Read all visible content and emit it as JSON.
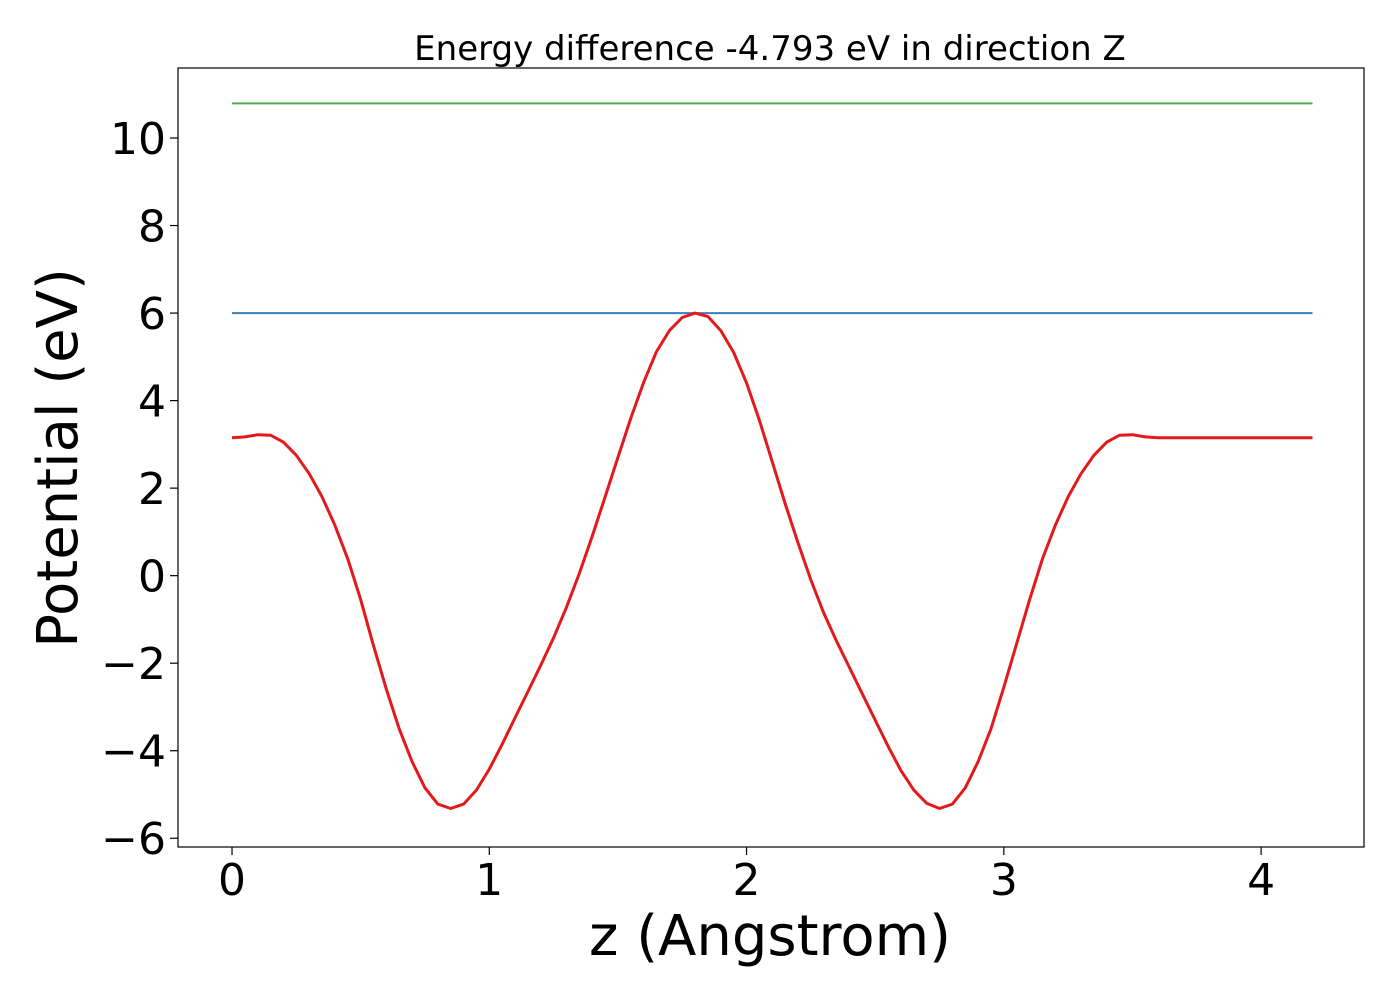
{
  "chart_data": {
    "type": "line",
    "title": "Energy difference -4.793 eV in direction Z",
    "xlabel": "z (Angstrom)",
    "ylabel": "Potential (eV)",
    "xlim": [
      -0.21,
      4.4
    ],
    "ylim": [
      -6.2,
      11.6
    ],
    "xticks": [
      0,
      1,
      2,
      3,
      4
    ],
    "yticks": [
      -6,
      -4,
      -2,
      0,
      2,
      4,
      6,
      8,
      10
    ],
    "xtick_labels": [
      "0",
      "1",
      "2",
      "3",
      "4"
    ],
    "ytick_labels": [
      "−6",
      "−4",
      "−2",
      "0",
      "2",
      "4",
      "6",
      "8",
      "10"
    ],
    "grid": false,
    "colors": {
      "potential": "#e31a1c",
      "upper": "#4daf4a",
      "middle": "#377eb8"
    },
    "series": [
      {
        "key": "upper",
        "x": [
          0,
          4.2
        ],
        "y": [
          10.79,
          10.79
        ]
      },
      {
        "key": "middle",
        "x": [
          0,
          4.2
        ],
        "y": [
          6.0,
          6.0
        ]
      },
      {
        "key": "potential",
        "x": [
          0.0,
          0.05,
          0.1,
          0.15,
          0.2,
          0.25,
          0.3,
          0.35,
          0.4,
          0.45,
          0.5,
          0.55,
          0.6,
          0.65,
          0.7,
          0.75,
          0.8,
          0.85,
          0.9,
          0.95,
          1.0,
          1.05,
          1.1,
          1.15,
          1.2,
          1.25,
          1.3,
          1.35,
          1.4,
          1.45,
          1.5,
          1.55,
          1.6,
          1.65,
          1.7,
          1.75,
          1.8,
          1.85,
          1.9,
          1.95,
          2.0,
          2.05,
          2.1,
          2.15,
          2.2,
          2.25,
          2.3,
          2.35,
          2.4,
          2.45,
          2.5,
          2.55,
          2.6,
          2.65,
          2.7,
          2.75,
          2.8,
          2.85,
          2.9,
          2.95,
          3.0,
          3.05,
          3.1,
          3.15,
          3.2,
          3.25,
          3.3,
          3.35,
          3.4,
          3.45,
          3.5,
          3.55,
          3.6,
          3.65,
          3.7,
          3.75,
          3.8,
          3.85,
          3.9,
          3.95,
          4.0,
          4.05,
          4.1,
          4.15,
          4.2
        ],
        "y": [
          3.15,
          3.17,
          3.22,
          3.21,
          3.05,
          2.75,
          2.33,
          1.8,
          1.15,
          0.38,
          -0.55,
          -1.6,
          -2.6,
          -3.5,
          -4.25,
          -4.85,
          -5.22,
          -5.32,
          -5.22,
          -4.9,
          -4.42,
          -3.85,
          -3.25,
          -2.65,
          -2.05,
          -1.42,
          -0.72,
          0.05,
          0.9,
          1.8,
          2.7,
          3.6,
          4.42,
          5.12,
          5.6,
          5.9,
          6.0,
          5.92,
          5.6,
          5.1,
          4.4,
          3.55,
          2.6,
          1.65,
          0.75,
          -0.1,
          -0.85,
          -1.5,
          -2.1,
          -2.7,
          -3.3,
          -3.9,
          -4.45,
          -4.9,
          -5.2,
          -5.32,
          -5.22,
          -4.85,
          -4.25,
          -3.5,
          -2.55,
          -1.55,
          -0.55,
          0.38,
          1.15,
          1.8,
          2.33,
          2.75,
          3.05,
          3.21,
          3.22,
          3.17,
          3.15,
          3.15,
          3.15,
          3.15,
          3.15,
          3.15,
          3.15,
          3.15,
          3.15,
          3.15,
          3.15,
          3.15,
          3.15
        ]
      }
    ]
  }
}
